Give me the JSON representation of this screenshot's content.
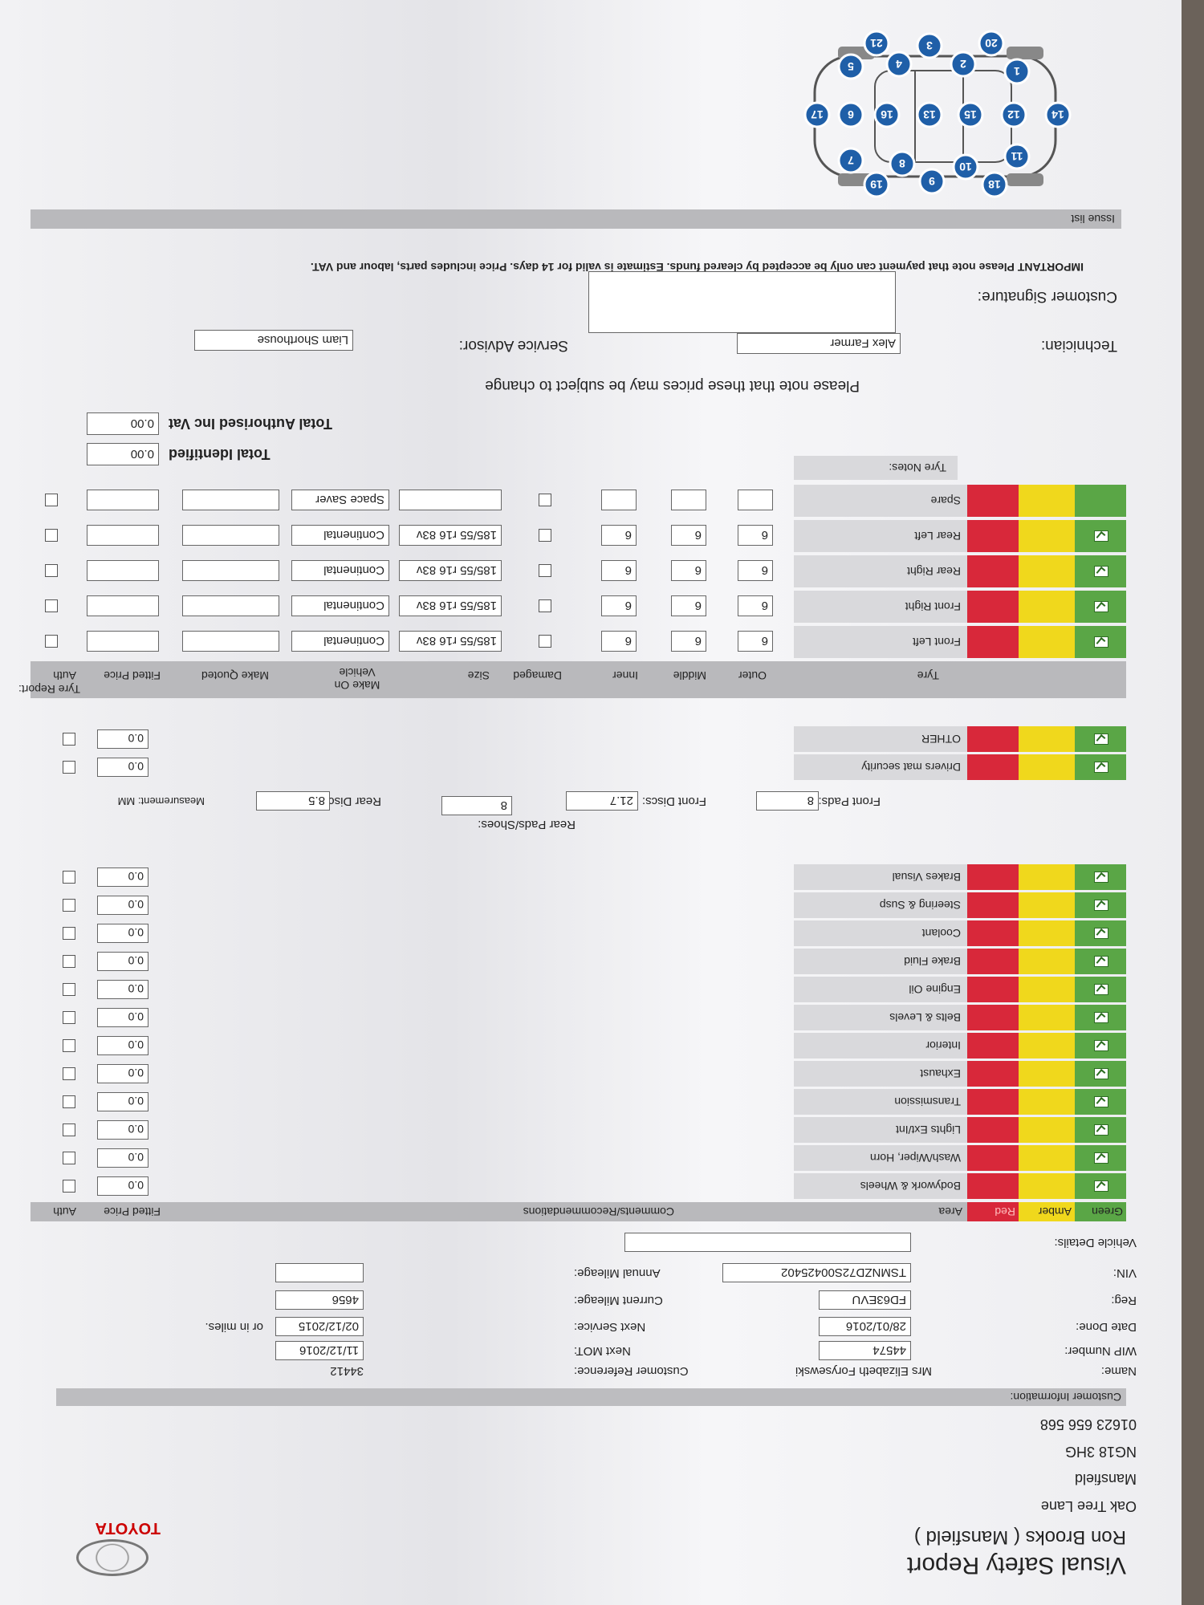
{
  "header": {
    "title": "Visual Safety Report",
    "dealer": "Ron Brooks ( Mansfield )",
    "brand": "TOYOTA",
    "address": [
      "Oak Tree Lane",
      "Mansfield",
      "NG18 3HG",
      "01623 656 568"
    ]
  },
  "customer": {
    "section": "Customer Information:",
    "left": [
      {
        "label": "Name:",
        "value": "Mrs Elizabeth Forysewski"
      },
      {
        "label": "WIP Number:",
        "value": "44574"
      },
      {
        "label": "Date Done:",
        "value": "28/01/2016"
      },
      {
        "label": "Reg:",
        "value": "FD63EVU"
      },
      {
        "label": "VIN:",
        "value": "TSMNZD72S00425402"
      },
      {
        "label": "Vehicle Details:"
      }
    ],
    "right": [
      {
        "label": "Customer Reference:",
        "value": "34412"
      },
      {
        "label": "Next MOT:",
        "value": "11/12/2016"
      },
      {
        "label": "Next Service:",
        "value": "02/12/2015",
        "note": "or in miles."
      },
      {
        "label": "Current Mileage:",
        "value": "4656"
      },
      {
        "label": "Annual Mileage:"
      }
    ]
  },
  "checks": {
    "headers": {
      "green": "Green",
      "amber": "Amber",
      "red": "Red",
      "area": "Area",
      "comments": "Comments/Recommendations",
      "price": "Fitted Price",
      "auth": "Auth"
    },
    "rows": [
      {
        "area": "Bodywork & Wheels",
        "price": "0.0"
      },
      {
        "area": "Wash/Wiper, Horn",
        "price": "0.0"
      },
      {
        "area": "Lights Ext/Int",
        "price": "0.0"
      },
      {
        "area": "Transmission",
        "price": "0.0"
      },
      {
        "area": "Exhaust",
        "price": "0.0"
      },
      {
        "area": "Interior",
        "price": "0.0"
      },
      {
        "area": "Belts & Levels",
        "price": "0.0"
      },
      {
        "area": "Engine Oil",
        "price": "0.0"
      },
      {
        "area": "Brake Fluid",
        "price": "0.0"
      },
      {
        "area": "Coolant",
        "price": "0.0"
      },
      {
        "area": "Steering & Susp",
        "price": "0.0"
      },
      {
        "area": "Brakes Visual",
        "price": "0.0"
      }
    ]
  },
  "brakes": {
    "front_pads": {
      "label": "Front Pads:",
      "value": "8"
    },
    "front_discs": {
      "label": "Front Discs:",
      "value": "21.7"
    },
    "rear_pads": {
      "label": "Rear Pads/Shoes:",
      "value": "8"
    },
    "rear_discs": {
      "label": "Rear Discs:",
      "value": "8.5"
    },
    "measurement": "Measurement:  MM"
  },
  "extras": [
    {
      "area": "Drivers mat security",
      "price": "0.0"
    },
    {
      "area": "OTHER",
      "price": "0.0"
    }
  ],
  "tyres": {
    "title": "Tyre Report:",
    "headers": [
      "Tyre",
      "Outer",
      "Middle",
      "Inner",
      "Damaged",
      "Size",
      "Make On Vehicle",
      "Make Quoted",
      "Fitted Price",
      "Auth"
    ],
    "rows": [
      {
        "tyre": "Front Left",
        "outer": "6",
        "middle": "6",
        "inner": "6",
        "size": "185/55 r16 83v",
        "make": "Continental"
      },
      {
        "tyre": "Front Right",
        "outer": "6",
        "middle": "6",
        "inner": "6",
        "size": "185/55 r16 83v",
        "make": "Continental"
      },
      {
        "tyre": "Rear Right",
        "outer": "6",
        "middle": "6",
        "inner": "6",
        "size": "185/55 r16 83v",
        "make": "Continental"
      },
      {
        "tyre": "Rear Left",
        "outer": "6",
        "middle": "6",
        "inner": "6",
        "size": "185/55 r16 83v",
        "make": "Continental"
      },
      {
        "tyre": "Spare",
        "make": "Space Saver"
      }
    ],
    "notes": "Tyre Notes:"
  },
  "totals": [
    {
      "label": "Total Identified",
      "value": "0.00"
    },
    {
      "label": "Total Authorised Inc Vat",
      "value": "0.00"
    }
  ],
  "note": "Please note that these prices may be subject to change",
  "staff": {
    "technician": {
      "label": "Technician:",
      "value": "Alex Farmer"
    },
    "advisor": {
      "label": "Service Advisor:",
      "value": "Liam Shorthouse"
    },
    "signature": "Customer Signature:"
  },
  "important": "IMPORTANT Please note that payment can only be accepted by cleared funds. Estimate is valid for 14 days. Price includes parts, labour and VAT.",
  "issue_list": "Issue list",
  "diagram": {
    "points": [
      "20",
      "3",
      "21",
      "1",
      "2",
      "4",
      "5",
      "14",
      "12",
      "15",
      "13",
      "16",
      "6",
      "17",
      "11",
      "10",
      "8",
      "7",
      "18",
      "9",
      "19"
    ]
  }
}
